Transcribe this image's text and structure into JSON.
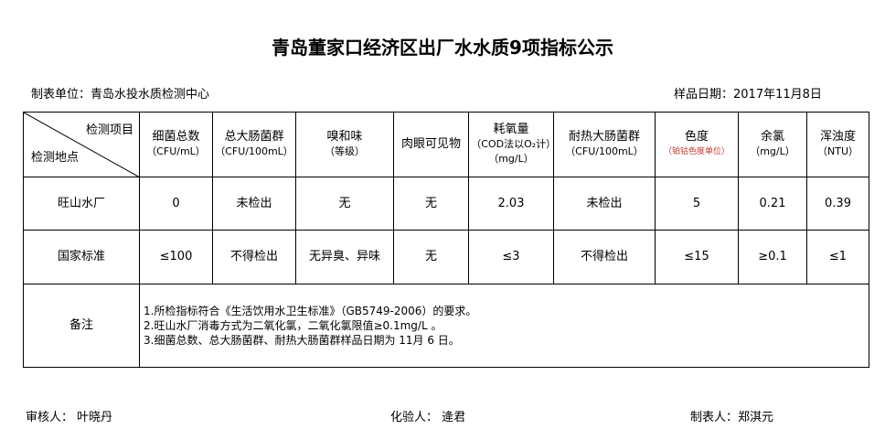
{
  "title": "青岛董家口经济区出厂水水质9项指标公示",
  "unit": "制表单位：青岛水投水质检测中心",
  "sample_date": "样品日期：2017年11月8日",
  "corner": {
    "top": "检测项目",
    "bottom": "检测地点"
  },
  "headers": [
    {
      "name": "细菌总数",
      "unit": "（CFU/mL）"
    },
    {
      "name": "总大肠菌群",
      "unit": "（CFU/100mL）"
    },
    {
      "name": "嗅和味",
      "unit": "（等级）"
    },
    {
      "name": "肉眼可见物",
      "unit": ""
    },
    {
      "name": "耗氧量",
      "unit": "（COD法以O₂计）（mg/L）"
    },
    {
      "name": "耐热大肠菌群",
      "unit": "（CFU/100mL）"
    },
    {
      "name": "色度",
      "unit": "（铂钴色度单位）"
    },
    {
      "name": "余氯",
      "unit": "（mg/L）"
    },
    {
      "name": "浑浊度",
      "unit": "（NTU）"
    }
  ],
  "rows": [
    {
      "label": "旺山水厂",
      "values": [
        "0",
        "未检出",
        "无",
        "无",
        "2.03",
        "未检出",
        "5",
        "0.21",
        "0.39"
      ]
    },
    {
      "label": "国家标准",
      "values": [
        "≤100",
        "不得检出",
        "无异臭、异味",
        "无",
        "≤3",
        "不得检出",
        "≤15",
        "≥0.1",
        "≤1"
      ]
    }
  ],
  "notes_label": "备注",
  "notes": [
    "1.所检指标符合《生活饮用水卫生标准》（GB5749-2006）的要求。",
    "2.旺山水厂消毒方式为二氧化氯，二氧化氯限值≥0.1mg/L 。",
    "3.细菌总数、总大肠菌群、耐热大肠菌群样品日期为 11月 6 日。"
  ],
  "footer": {
    "reviewer": "审核人：  叶晓丹",
    "tester": "化验人：  逄君",
    "preparer": "制表人：郑淇元"
  },
  "colors": {
    "unit_note": "#c0392b"
  }
}
